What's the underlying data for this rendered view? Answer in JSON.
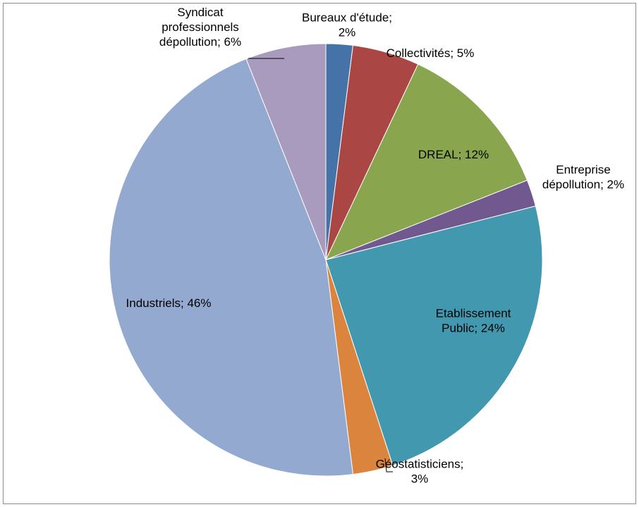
{
  "chart_data": {
    "type": "pie",
    "title": "",
    "slices": [
      {
        "label": "Bureaux d'étude",
        "value": 2,
        "text": [
          "Bureaux d'étude;",
          "2%"
        ],
        "color": "#4572A7"
      },
      {
        "label": "Collectivités",
        "value": 5,
        "text": [
          "Collectivités; 5%"
        ],
        "color": "#AA4643"
      },
      {
        "label": "DREAL",
        "value": 12,
        "text": [
          "DREAL; 12%"
        ],
        "color": "#89A54E"
      },
      {
        "label": "Entreprise dépollution",
        "value": 2,
        "text": [
          "Entreprise",
          "dépollution; 2%"
        ],
        "color": "#71588F"
      },
      {
        "label": "Etablissement Public",
        "value": 24,
        "text": [
          "Etablissement",
          "Public; 24%"
        ],
        "color": "#4198AF"
      },
      {
        "label": "Géostatisticiens",
        "value": 3,
        "text": [
          "Géostatisticiens;",
          "3%"
        ],
        "color": "#DB843D"
      },
      {
        "label": "Industriels",
        "value": 46,
        "text": [
          "Industriels; 46%"
        ],
        "color": "#93A9CF"
      },
      {
        "label": "Syndicat professionnels dépollution",
        "value": 6,
        "text": [
          "Syndicat",
          "professionnels",
          "dépollution; 6%"
        ],
        "color": "#A99BBD"
      }
    ]
  }
}
